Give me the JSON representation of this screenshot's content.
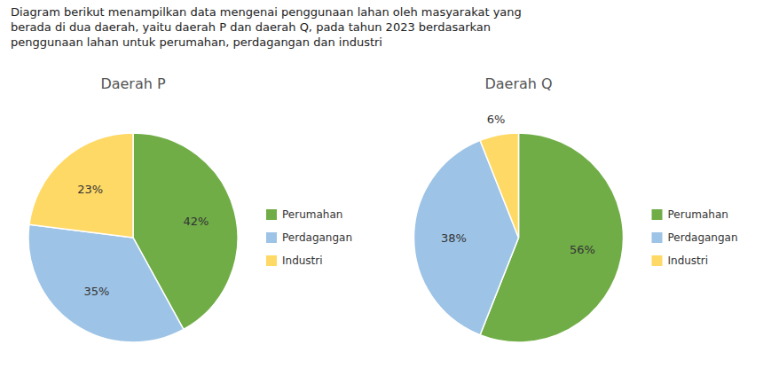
{
  "title": "Diagram berikut menampilkan data mengenai penggunaan lahan oleh masyarakat yang\nberada di dua daerah, yaitu daerah P dan daerah Q, pada tahun 2023 berdasarkan\npenggunaan lahan untuk perumahan, perdagangan dan industri",
  "chart_data": [
    {
      "type": "pie",
      "title": "Daerah P",
      "categories": [
        "Perumahan",
        "Perdagangan",
        "Industri"
      ],
      "values": [
        42,
        35,
        23
      ],
      "value_labels": [
        "42%",
        "35%",
        "23%"
      ],
      "colors": [
        "#70AD47",
        "#9DC3E6",
        "#FFD966"
      ],
      "data_labels": true,
      "legend": "right"
    },
    {
      "type": "pie",
      "title": "Daerah Q",
      "categories": [
        "Perumahan",
        "Perdagangan",
        "Industri"
      ],
      "values": [
        56,
        38,
        6
      ],
      "value_labels": [
        "56%",
        "38%",
        "6%"
      ],
      "colors": [
        "#70AD47",
        "#9DC3E6",
        "#FFD966"
      ],
      "data_labels": true,
      "legend": "right"
    }
  ]
}
